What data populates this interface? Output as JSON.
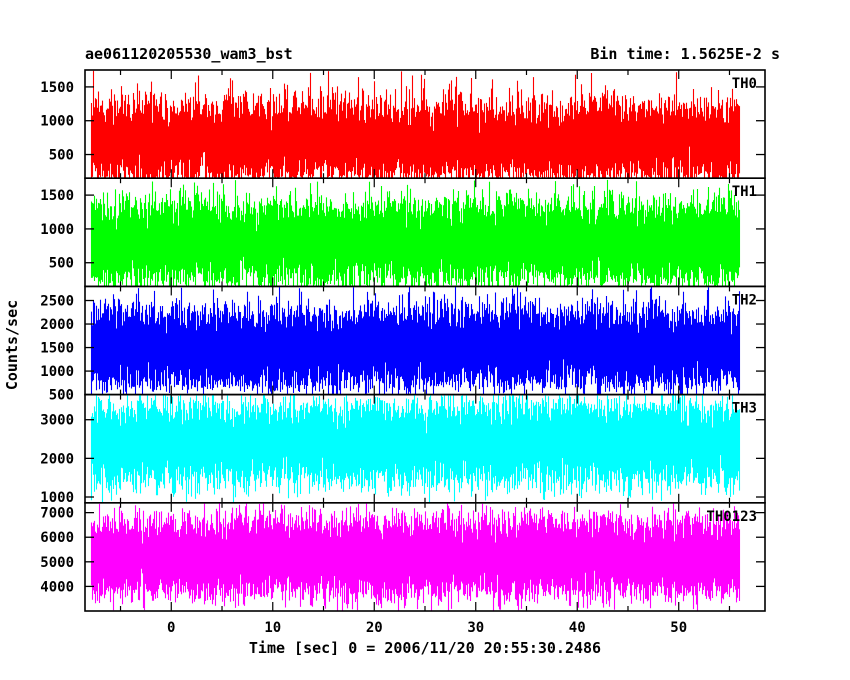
{
  "header": {
    "title": "ae061120205530_wam3_bst",
    "bin_time": "Bin time: 1.5625E-2 s"
  },
  "chart_data": {
    "type": "line",
    "title": "ae061120205530_wam3_bst",
    "subtitle": "Bin time: 1.5625E-2 s",
    "xlabel": "Time [sec] 0 = 2006/11/20 20:55:30.2486",
    "ylabel": "Counts/sec",
    "xlim": [
      -8.5,
      58.5
    ],
    "x_range_of_data": [
      -8,
      56
    ],
    "bin_time_s": 0.015625,
    "xticks": [
      0,
      10,
      20,
      30,
      40,
      50
    ],
    "xticklabels": [
      "0",
      "10",
      "20",
      "30",
      "40",
      "50"
    ],
    "grid": false,
    "panels": [
      {
        "name": "TH0",
        "color": "#ff0000",
        "ylim": [
          150,
          1750
        ],
        "yticks": [
          500,
          1000,
          1500
        ],
        "yticklabels": [
          "500",
          "1000",
          "1500"
        ],
        "baseline": 700,
        "typical_low": 200,
        "typical_high": 1300,
        "peak_max": 1750
      },
      {
        "name": "TH1",
        "color": "#00ff00",
        "ylim": [
          150,
          1750
        ],
        "yticks": [
          500,
          1000,
          1500
        ],
        "yticklabels": [
          "500",
          "1000",
          "1500"
        ],
        "baseline": 800,
        "typical_low": 250,
        "typical_high": 1400,
        "peak_max": 1750
      },
      {
        "name": "TH2",
        "color": "#0000ff",
        "ylim": [
          500,
          2800
        ],
        "yticks": [
          500,
          1000,
          1500,
          2000,
          2500
        ],
        "yticklabels": [
          "500",
          "1000",
          "1500",
          "2000",
          "2500"
        ],
        "baseline": 1500,
        "typical_low": 800,
        "typical_high": 2400,
        "peak_max": 2800
      },
      {
        "name": "TH3",
        "color": "#00ffff",
        "ylim": [
          850,
          3650
        ],
        "yticks": [
          1000,
          2000,
          3000
        ],
        "yticklabels": [
          "1000",
          "2000",
          "3000"
        ],
        "baseline": 2400,
        "typical_low": 1200,
        "typical_high": 3200,
        "peak_max": 3650
      },
      {
        "name": "TH0123",
        "color": "#ff00ff",
        "ylim": [
          3000,
          7400
        ],
        "yticks": [
          4000,
          5000,
          6000,
          7000
        ],
        "yticklabels": [
          "4000",
          "5000",
          "6000",
          "7000"
        ],
        "baseline": 5200,
        "typical_low": 3700,
        "typical_high": 6800,
        "peak_max": 7400
      }
    ]
  }
}
